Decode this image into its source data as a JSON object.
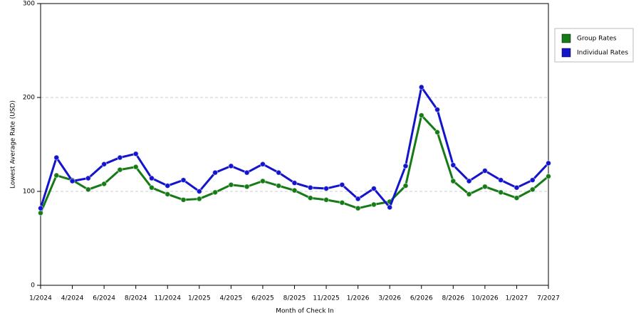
{
  "chart_data": {
    "type": "line",
    "x_label": "Month of Check In",
    "y_label": "Lowest Average Rate (USD)",
    "categories": [
      "1/2024",
      null,
      "4/2024",
      null,
      "6/2024",
      null,
      "8/2024",
      null,
      "11/2024",
      null,
      "1/2025",
      null,
      "4/2025",
      null,
      "6/2025",
      null,
      "8/2025",
      null,
      "11/2025",
      null,
      "1/2026",
      null,
      "3/2026",
      null,
      "6/2026",
      null,
      "8/2026",
      null,
      "10/2026",
      null,
      "1/2027",
      null,
      "7/2027"
    ],
    "series": [
      {
        "name": "Group Rates",
        "color": "#167a16",
        "values": [
          77,
          117,
          112,
          102,
          108,
          123,
          126,
          104,
          97,
          91,
          92,
          99,
          107,
          105,
          111,
          106,
          101,
          93,
          91,
          88,
          82,
          86,
          89,
          106,
          181,
          163,
          111,
          97,
          105,
          99,
          93,
          102,
          116
        ]
      },
      {
        "name": "Individual Rates",
        "color": "#1414cc",
        "values": [
          82,
          136,
          111,
          114,
          129,
          136,
          140,
          114,
          106,
          112,
          100,
          120,
          127,
          120,
          129,
          120,
          109,
          104,
          103,
          107,
          92,
          103,
          83,
          127,
          211,
          187,
          128,
          111,
          122,
          112,
          104,
          112,
          130
        ]
      }
    ],
    "ylim": [
      0,
      300
    ],
    "yticks": [
      0,
      100,
      200,
      300
    ],
    "grid": true,
    "legend": "right"
  }
}
